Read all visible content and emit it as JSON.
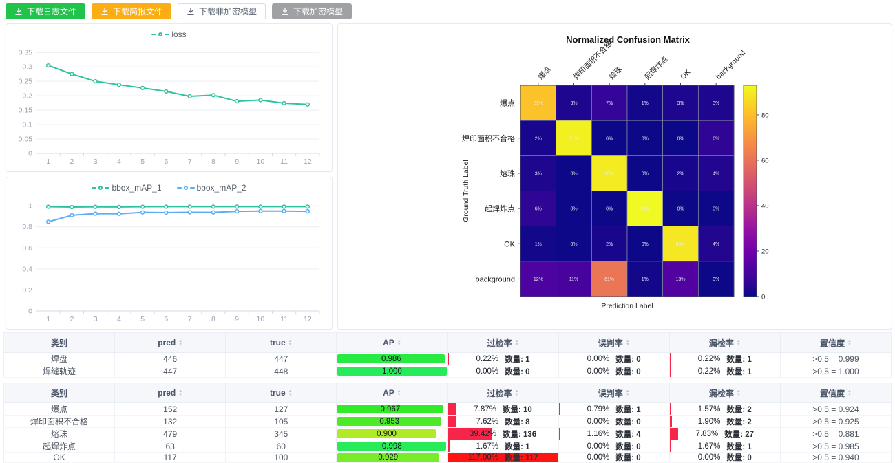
{
  "toolbar": {
    "buttons": [
      {
        "label": "下载日志文件",
        "style": "green"
      },
      {
        "label": "下载简报文件",
        "style": "orange"
      },
      {
        "label": "下载非加密模型",
        "style": "plain"
      },
      {
        "label": "下载加密模型",
        "style": "gray"
      }
    ]
  },
  "chart_data": [
    {
      "type": "line",
      "title": "",
      "x": [
        1,
        2,
        3,
        4,
        5,
        6,
        7,
        8,
        9,
        10,
        11,
        12
      ],
      "series": [
        {
          "name": "loss",
          "color": "#2dc3a0",
          "values": [
            0.305,
            0.275,
            0.25,
            0.238,
            0.227,
            0.215,
            0.198,
            0.202,
            0.181,
            0.185,
            0.174,
            0.17
          ]
        }
      ],
      "yticks": [
        0,
        0.05,
        0.1,
        0.15,
        0.2,
        0.25,
        0.3,
        0.35
      ],
      "ylim": [
        0,
        0.372
      ],
      "grid": true,
      "legend_position": "top"
    },
    {
      "type": "line",
      "title": "",
      "x": [
        1,
        2,
        3,
        4,
        5,
        6,
        7,
        8,
        9,
        10,
        11,
        12
      ],
      "series": [
        {
          "name": "bbox_mAP_1",
          "color": "#2dc3a0",
          "values": [
            0.991,
            0.988,
            0.99,
            0.989,
            0.991,
            0.992,
            0.992,
            0.992,
            0.992,
            0.992,
            0.992,
            0.992
          ]
        },
        {
          "name": "bbox_mAP_2",
          "color": "#57aef2",
          "values": [
            0.848,
            0.91,
            0.926,
            0.924,
            0.938,
            0.936,
            0.939,
            0.938,
            0.948,
            0.95,
            0.95,
            0.948
          ]
        }
      ],
      "yticks": [
        0,
        0.2,
        0.4,
        0.6,
        0.8,
        1
      ],
      "ylim": [
        0,
        1.06
      ],
      "grid": true,
      "legend_position": "top"
    },
    {
      "type": "heatmap",
      "title": "Normalized Confusion Matrix",
      "xlabel": "Prediction Label",
      "ylabel": "Ground Truth Label",
      "labels": [
        "爆点",
        "焊印面积不合格",
        "熔珠",
        "起焊炸点",
        "OK",
        "background"
      ],
      "values_percent": [
        [
          81,
          3,
          7,
          1,
          3,
          3
        ],
        [
          2,
          91,
          0,
          0,
          0,
          6
        ],
        [
          3,
          0,
          90,
          0,
          2,
          4
        ],
        [
          6,
          0,
          0,
          93,
          0,
          0
        ],
        [
          1,
          0,
          2,
          0,
          89,
          4
        ],
        [
          12,
          11,
          61,
          1,
          13,
          0
        ]
      ],
      "colormap": "plasma",
      "colorbar_ticks": [
        0,
        20,
        40,
        60,
        80
      ],
      "vmax": 93
    }
  ],
  "tables": {
    "columns": [
      {
        "label": "类别",
        "sortable": false
      },
      {
        "label": "pred",
        "sortable": true
      },
      {
        "label": "true",
        "sortable": true
      },
      {
        "label": "AP",
        "sortable": true
      },
      {
        "label": "过检率",
        "sortable": true
      },
      {
        "label": "误判率",
        "sortable": true
      },
      {
        "label": "漏检率",
        "sortable": true
      },
      {
        "label": "置信度",
        "sortable": true
      }
    ],
    "table1": {
      "rows": [
        {
          "name": "焊盘",
          "pred": "446",
          "true": "447",
          "ap": 0.986,
          "ap_label": "0.986",
          "over_pct": "0.22%",
          "over_count": "数量: 1",
          "over_value": 0.22,
          "mis_pct": "0.00%",
          "mis_count": "数量: 0",
          "mis_value": 0,
          "miss_pct": "0.22%",
          "miss_count": "数量: 1",
          "miss_value": 0.22,
          "conf": ">0.5 = 0.999"
        },
        {
          "name": "焊缝轨迹",
          "pred": "447",
          "true": "448",
          "ap": 1.0,
          "ap_label": "1.000",
          "over_pct": "0.00%",
          "over_count": "数量: 0",
          "over_value": 0,
          "mis_pct": "0.00%",
          "mis_count": "数量: 0",
          "mis_value": 0,
          "miss_pct": "0.22%",
          "miss_count": "数量: 1",
          "miss_value": 0.22,
          "conf": ">0.5 = 1.000"
        }
      ]
    },
    "table2": {
      "rows": [
        {
          "name": "爆点",
          "pred": "152",
          "true": "127",
          "ap": 0.967,
          "ap_label": "0.967",
          "over_pct": "7.87%",
          "over_count": "数量: 10",
          "over_value": 7.87,
          "mis_pct": "0.79%",
          "mis_count": "数量: 1",
          "mis_value": 0.79,
          "miss_pct": "1.57%",
          "miss_count": "数量: 2",
          "miss_value": 1.57,
          "conf": ">0.5 = 0.924"
        },
        {
          "name": "焊印面积不合格",
          "pred": "132",
          "true": "105",
          "ap": 0.953,
          "ap_label": "0.953",
          "over_pct": "7.62%",
          "over_count": "数量: 8",
          "over_value": 7.62,
          "mis_pct": "0.00%",
          "mis_count": "数量: 0",
          "mis_value": 0,
          "miss_pct": "1.90%",
          "miss_count": "数量: 2",
          "miss_value": 1.9,
          "conf": ">0.5 = 0.925"
        },
        {
          "name": "熔珠",
          "pred": "479",
          "true": "345",
          "ap": 0.9,
          "ap_label": "0.900",
          "over_pct": "39.42%",
          "over_count": "数量: 136",
          "over_value": 39.42,
          "mis_pct": "1.16%",
          "mis_count": "数量: 4",
          "mis_value": 1.16,
          "miss_pct": "7.83%",
          "miss_count": "数量: 27",
          "miss_value": 7.83,
          "conf": ">0.5 = 0.881"
        },
        {
          "name": "起焊炸点",
          "pred": "63",
          "true": "60",
          "ap": 0.998,
          "ap_label": "0.998",
          "over_pct": "1.67%",
          "over_count": "数量: 1",
          "over_value": 1.67,
          "mis_pct": "0.00%",
          "mis_count": "数量: 0",
          "mis_value": 0,
          "miss_pct": "1.67%",
          "miss_count": "数量: 1",
          "miss_value": 1.67,
          "conf": ">0.5 = 0.985"
        },
        {
          "name": "OK",
          "pred": "117",
          "true": "100",
          "ap": 0.929,
          "ap_label": "0.929",
          "over_pct": "117.00%",
          "over_count": "数量: 117",
          "over_value": 117,
          "mis_pct": "0.00%",
          "mis_count": "数量: 0",
          "mis_value": 0,
          "miss_pct": "0.00%",
          "miss_count": "数量: 0",
          "miss_value": 0,
          "conf": ">0.5 = 0.940"
        }
      ]
    }
  },
  "colors": {
    "teal": "#2dc3a0",
    "blue": "#57aef2",
    "bar_red": "#f5264a",
    "bar_red_full": "#ff1414",
    "grid": "#e9edf4",
    "axis_text": "#9aa3b2"
  }
}
